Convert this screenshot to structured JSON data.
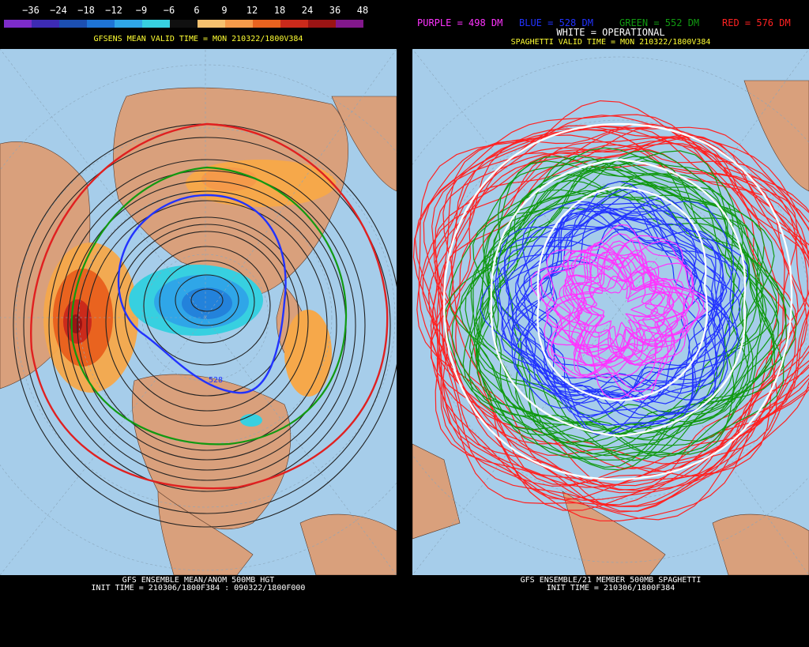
{
  "left_panel": {
    "colorbar_ticks": [
      "−36",
      "−24",
      "−18",
      "−12",
      "−9",
      "−6",
      "6",
      "9",
      "12",
      "18",
      "24",
      "36",
      "48"
    ],
    "colorbar_colors": [
      "#7d2cc9",
      "#3d2bb4",
      "#1c4fb1",
      "#1e74d6",
      "#2fa6e8",
      "#37d0e0",
      "#101010",
      "#f6c16f",
      "#f59a4a",
      "#e9631f",
      "#cb2a1b",
      "#9a1414",
      "#82188c"
    ],
    "title": "GFSENS MEAN VALID TIME = MON 210322/1800V384",
    "contour_label": "528",
    "footer_line1": "GFS ENSEMBLE MEAN/ANOM 500MB HGT",
    "footer_line2": "INIT TIME = 210306/1800F384 : 090322/1800F000"
  },
  "right_panel": {
    "legend": [
      {
        "text": "PURPLE = 498 DM",
        "color": "#ff33ff"
      },
      {
        "text": "BLUE = 528 DM",
        "color": "#2233ff"
      },
      {
        "text": "GREEN = 552 DM",
        "color": "#119911"
      },
      {
        "text": "RED = 576 DM",
        "color": "#ff2222"
      }
    ],
    "operational_label": "WHITE = OPERATIONAL",
    "title": "SPAGHETTI VALID TIME = MON 210322/1800V384",
    "footer_line1": "GFS ENSEMBLE/21 MEMBER 500MB SPAGHETTI",
    "footer_line2": "INIT TIME = 210306/1800F384"
  },
  "colors": {
    "ocean": "#a6cdea",
    "land": "#d9a07c",
    "background": "#000000"
  }
}
